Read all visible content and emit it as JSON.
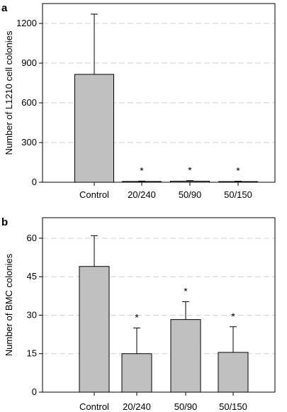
{
  "chart_data": [
    {
      "type": "bar",
      "panel": "a",
      "ylabel": "Number of L1210 cell colonies",
      "xlabel": "",
      "title": "",
      "categories": [
        "Control",
        "20/240",
        "50/90",
        "50/150"
      ],
      "values": [
        815,
        6,
        8,
        5
      ],
      "errors": [
        455,
        3,
        4,
        3
      ],
      "significance": [
        "",
        "*",
        "*",
        "*"
      ],
      "ylim": [
        0,
        1350
      ],
      "yticks": [
        0,
        300,
        600,
        900,
        1200
      ],
      "grid": "horizontal-dashed",
      "bar_color": "#c0c0c0"
    },
    {
      "type": "bar",
      "panel": "b",
      "ylabel": "Number of BMC colonies",
      "xlabel": "",
      "title": "",
      "categories": [
        "Control",
        "20/240",
        "50/90",
        "50/150"
      ],
      "values": [
        49,
        15,
        28.3,
        15.5
      ],
      "errors": [
        12,
        10,
        7,
        10
      ],
      "significance": [
        "",
        "*",
        "*",
        "*"
      ],
      "ylim": [
        0,
        68
      ],
      "yticks": [
        0,
        15,
        30,
        45,
        60
      ],
      "grid": "horizontal-dashed",
      "bar_color": "#c0c0c0"
    }
  ]
}
